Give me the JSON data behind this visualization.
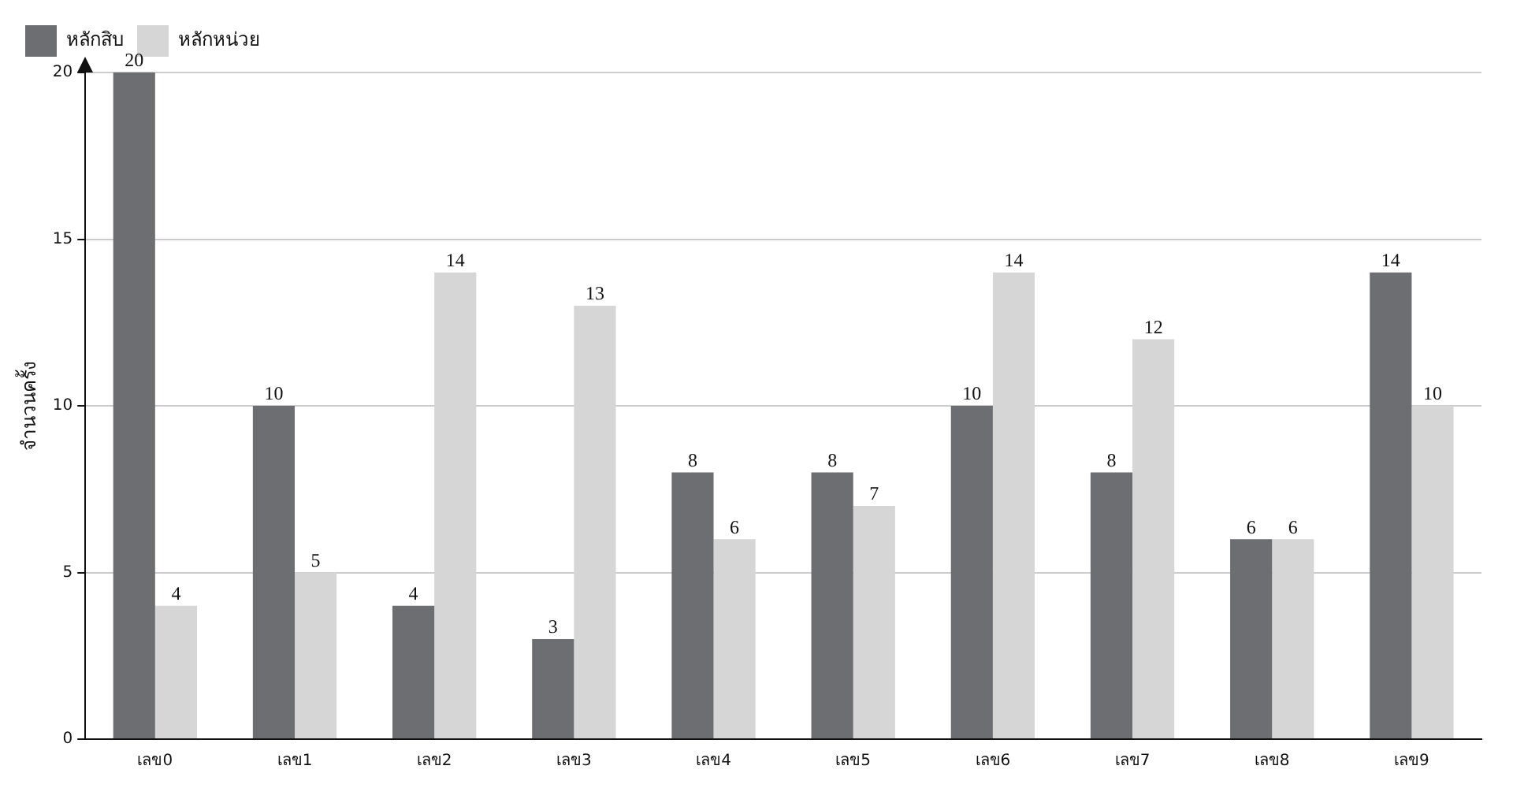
{
  "chart_data": {
    "type": "bar",
    "ylabel": "จำนวนครั้ง",
    "categories": [
      "เลข0",
      "เลข1",
      "เลข2",
      "เลข3",
      "เลข4",
      "เลข5",
      "เลข6",
      "เลข7",
      "เลข8",
      "เลข9"
    ],
    "series": [
      {
        "name": "หลักสิบ",
        "color": "#6d6e71",
        "values": [
          20,
          10,
          4,
          3,
          8,
          8,
          10,
          8,
          6,
          14
        ]
      },
      {
        "name": "หลักหน่วย",
        "color": "#d6d6d6",
        "values": [
          4,
          5,
          14,
          13,
          6,
          7,
          14,
          12,
          6,
          10
        ]
      }
    ],
    "ylim": [
      0,
      20
    ],
    "yticks": [
      0,
      5,
      10,
      15,
      20
    ],
    "grid": "y",
    "legend": "top left",
    "data_labels": true
  }
}
